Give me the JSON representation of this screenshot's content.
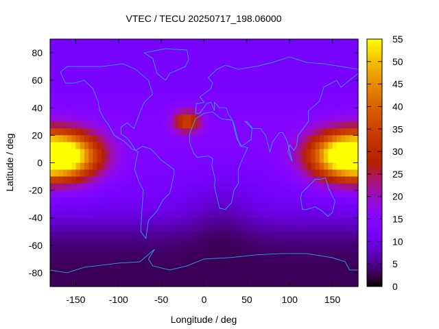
{
  "chart_data": {
    "type": "heatmap",
    "title": "VTEC / TECU 20250717_198.06000",
    "xlabel": "Longitude / deg",
    "ylabel": "Latitude / deg",
    "xlim": [
      -180,
      180
    ],
    "ylim": [
      -90,
      90
    ],
    "x_ticks": [
      -150,
      -100,
      -50,
      0,
      50,
      100,
      150
    ],
    "y_ticks": [
      -80,
      -60,
      -40,
      -20,
      0,
      20,
      40,
      60,
      80
    ],
    "colorbar": {
      "range": [
        0,
        55
      ],
      "ticks": [
        0,
        5,
        10,
        15,
        20,
        25,
        30,
        35,
        40,
        45,
        50,
        55
      ],
      "colormap": "gnuplot-hot (black-purple-red-orange-yellow)"
    },
    "overlay": "continent coastlines",
    "grid": false,
    "anomaly_peaks": [
      {
        "region": "eastern Pacific",
        "lon": -160,
        "lat": 5,
        "value": 52
      },
      {
        "region": "western Pacific",
        "lon": 160,
        "lat": 5,
        "value": 52
      },
      {
        "region": "north Atlantic",
        "lon": -20,
        "lat": 30,
        "value": 34
      }
    ],
    "background_level_tecu": 12,
    "southern_minimum_tecu": 3
  },
  "colors": {
    "coastline": "#29a6f2",
    "background": "#ffffff",
    "axes": "#000000"
  }
}
